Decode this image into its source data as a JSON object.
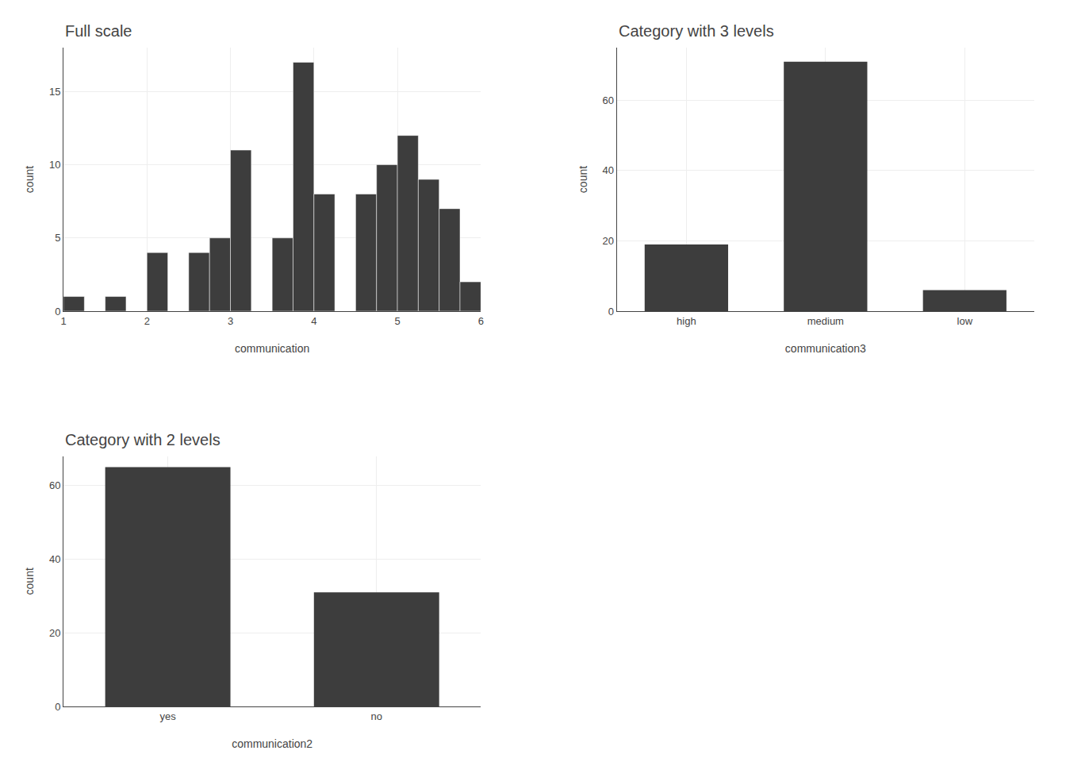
{
  "chart_data": [
    {
      "type": "histogram",
      "title": "Full scale",
      "xlabel": "communication",
      "ylabel": "count",
      "bins": [
        1.0,
        1.25,
        1.5,
        1.75,
        2.0,
        2.25,
        2.5,
        2.75,
        3.0,
        3.25,
        3.5,
        3.75,
        4.0,
        4.25,
        4.5,
        4.75,
        5.0,
        5.25,
        5.5,
        5.75,
        6.0
      ],
      "values": [
        1,
        0,
        1,
        0,
        4,
        0,
        4,
        5,
        11,
        0,
        5,
        17,
        8,
        0,
        8,
        10,
        12,
        9,
        7,
        2
      ],
      "xlim": [
        1,
        6
      ],
      "ylim": [
        0,
        18
      ],
      "xticks": [
        1,
        2,
        3,
        4,
        5,
        6
      ],
      "yticks": [
        0,
        5,
        10,
        15
      ],
      "color": "#3d3d3d",
      "grid": true
    },
    {
      "type": "bar",
      "title": "Category with 3 levels",
      "xlabel": "communication3",
      "ylabel": "count",
      "categories": [
        "high",
        "medium",
        "low"
      ],
      "values": [
        19,
        71,
        6
      ],
      "ylim": [
        0,
        75
      ],
      "yticks": [
        0,
        20,
        40,
        60
      ],
      "color": "#3d3d3d",
      "grid": true
    },
    {
      "type": "bar",
      "title": "Category with 2 levels",
      "xlabel": "communication2",
      "ylabel": "count",
      "categories": [
        "yes",
        "no"
      ],
      "values": [
        65,
        31
      ],
      "ylim": [
        0,
        68
      ],
      "yticks": [
        0,
        20,
        40,
        60
      ],
      "color": "#3d3d3d",
      "grid": true
    }
  ]
}
